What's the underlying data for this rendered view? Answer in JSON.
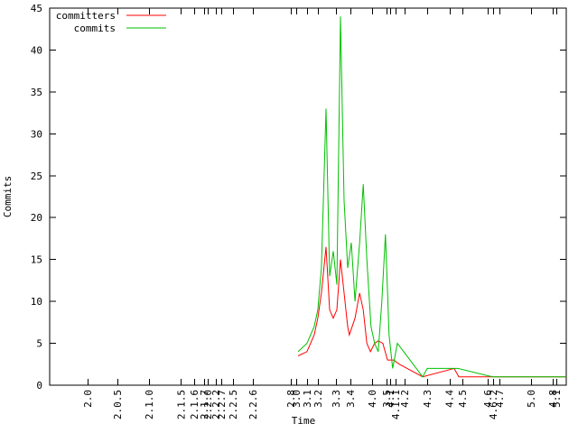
{
  "chart_data": {
    "type": "line",
    "title": "",
    "xlabel": "Time",
    "ylabel": "Commits",
    "ylim": [
      0,
      45
    ],
    "y_ticks": [
      0,
      5,
      10,
      15,
      20,
      25,
      30,
      35,
      40,
      45
    ],
    "grid": false,
    "legend_position": "top-left",
    "x_axis_style": "irregular category positions, labels rotated 90deg",
    "x_ticks": [
      {
        "label": "2.0",
        "t": 0.073
      },
      {
        "label": "2.0.5",
        "t": 0.131
      },
      {
        "label": "2.1.0",
        "t": 0.192
      },
      {
        "label": "2.1.5",
        "t": 0.254
      },
      {
        "label": "2.1.6",
        "t": 0.28
      },
      {
        "label": "2.1.7",
        "t": 0.299
      },
      {
        "label": "2.2.0",
        "t": 0.306
      },
      {
        "label": "2.2.2",
        "t": 0.322
      },
      {
        "label": "2.2.7",
        "t": 0.332
      },
      {
        "label": "2.2.5",
        "t": 0.355
      },
      {
        "label": "2.2.6",
        "t": 0.393
      },
      {
        "label": "2.8",
        "t": 0.467
      },
      {
        "label": "3.0",
        "t": 0.477
      },
      {
        "label": "3.1",
        "t": 0.498
      },
      {
        "label": "3.2",
        "t": 0.519
      },
      {
        "label": "3.3",
        "t": 0.554
      },
      {
        "label": "3.4",
        "t": 0.582
      },
      {
        "label": "4.0",
        "t": 0.624
      },
      {
        "label": "3.5",
        "t": 0.652
      },
      {
        "label": "4.1",
        "t": 0.659
      },
      {
        "label": "4.1.1",
        "t": 0.67
      },
      {
        "label": "4.2",
        "t": 0.687
      },
      {
        "label": "4.3",
        "t": 0.731
      },
      {
        "label": "4.4",
        "t": 0.774
      },
      {
        "label": "4.5",
        "t": 0.799
      },
      {
        "label": "4.6",
        "t": 0.848
      },
      {
        "label": "4.6.2",
        "t": 0.858
      },
      {
        "label": "4.7",
        "t": 0.871
      },
      {
        "label": "5.0",
        "t": 0.932
      },
      {
        "label": "4.8",
        "t": 0.974
      },
      {
        "label": "5.1",
        "t": 0.981
      }
    ],
    "series": [
      {
        "name": "committers",
        "color": "#ff0000",
        "points": [
          [
            0.481,
            3.5
          ],
          [
            0.498,
            4
          ],
          [
            0.512,
            6
          ],
          [
            0.519,
            8
          ],
          [
            0.526,
            11
          ],
          [
            0.535,
            16.5
          ],
          [
            0.542,
            9
          ],
          [
            0.549,
            8
          ],
          [
            0.556,
            9
          ],
          [
            0.563,
            15
          ],
          [
            0.57,
            11
          ],
          [
            0.577,
            7
          ],
          [
            0.58,
            6
          ],
          [
            0.591,
            8
          ],
          [
            0.6,
            11
          ],
          [
            0.607,
            9
          ],
          [
            0.614,
            5
          ],
          [
            0.621,
            4
          ],
          [
            0.629,
            5
          ],
          [
            0.636,
            5.3
          ],
          [
            0.645,
            5
          ],
          [
            0.654,
            3
          ],
          [
            0.666,
            3
          ],
          [
            0.677,
            2.5
          ],
          [
            0.722,
            1
          ],
          [
            0.783,
            2
          ],
          [
            0.792,
            1
          ],
          [
            1.0,
            1
          ]
        ]
      },
      {
        "name": "commits",
        "color": "#00c000",
        "points": [
          [
            0.481,
            4
          ],
          [
            0.498,
            5
          ],
          [
            0.512,
            7
          ],
          [
            0.519,
            9
          ],
          [
            0.526,
            14
          ],
          [
            0.535,
            33
          ],
          [
            0.542,
            13
          ],
          [
            0.549,
            16
          ],
          [
            0.556,
            12
          ],
          [
            0.563,
            44
          ],
          [
            0.57,
            22
          ],
          [
            0.577,
            14
          ],
          [
            0.584,
            17
          ],
          [
            0.591,
            10
          ],
          [
            0.6,
            17
          ],
          [
            0.607,
            24
          ],
          [
            0.614,
            15
          ],
          [
            0.622,
            7
          ],
          [
            0.629,
            5
          ],
          [
            0.636,
            4
          ],
          [
            0.643,
            10
          ],
          [
            0.65,
            18
          ],
          [
            0.657,
            6
          ],
          [
            0.664,
            2
          ],
          [
            0.673,
            5
          ],
          [
            0.722,
            1
          ],
          [
            0.731,
            2
          ],
          [
            0.79,
            2
          ],
          [
            0.857,
            1
          ],
          [
            1.0,
            1
          ]
        ]
      }
    ]
  }
}
